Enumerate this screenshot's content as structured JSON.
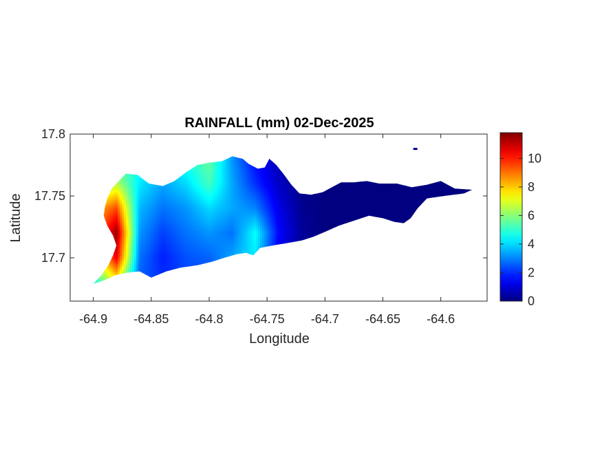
{
  "chart_data": {
    "type": "heatmap",
    "title": "RAINFALL (mm) 02-Dec-2025",
    "xlabel": "Longitude",
    "ylabel": "Latitude",
    "xlim": [
      -64.92,
      -64.56
    ],
    "ylim": [
      17.665,
      17.8
    ],
    "x_ticks": [
      -64.9,
      -64.85,
      -64.8,
      -64.75,
      -64.7,
      -64.65,
      -64.6
    ],
    "x_tick_labels": [
      "-64.9",
      "-64.85",
      "-64.8",
      "-64.75",
      "-64.7",
      "-64.65",
      "-64.6"
    ],
    "y_ticks": [
      17.7,
      17.75,
      17.8
    ],
    "y_tick_labels": [
      "17.7",
      "17.75",
      "17.8"
    ],
    "colorbar": {
      "colormap": "jet",
      "range": [
        0,
        11.8
      ],
      "ticks": [
        0,
        2,
        4,
        6,
        8,
        10
      ],
      "tick_labels": [
        "0",
        "2",
        "4",
        "6",
        "8",
        "10"
      ]
    },
    "region_outline": [
      [
        -64.9,
        17.679
      ],
      [
        -64.893,
        17.686
      ],
      [
        -64.887,
        17.694
      ],
      [
        -64.883,
        17.702
      ],
      [
        -64.88,
        17.71
      ],
      [
        -64.883,
        17.718
      ],
      [
        -64.888,
        17.726
      ],
      [
        -64.891,
        17.734
      ],
      [
        -64.89,
        17.741
      ],
      [
        -64.888,
        17.748
      ],
      [
        -64.884,
        17.756
      ],
      [
        -64.878,
        17.762
      ],
      [
        -64.872,
        17.768
      ],
      [
        -64.862,
        17.767
      ],
      [
        -64.852,
        17.76
      ],
      [
        -64.84,
        17.758
      ],
      [
        -64.83,
        17.762
      ],
      [
        -64.82,
        17.769
      ],
      [
        -64.81,
        17.775
      ],
      [
        -64.799,
        17.777
      ],
      [
        -64.789,
        17.778
      ],
      [
        -64.78,
        17.782
      ],
      [
        -64.771,
        17.78
      ],
      [
        -64.766,
        17.776
      ],
      [
        -64.758,
        17.772
      ],
      [
        -64.752,
        17.773
      ],
      [
        -64.748,
        17.78
      ],
      [
        -64.742,
        17.775
      ],
      [
        -64.736,
        17.768
      ],
      [
        -64.729,
        17.759
      ],
      [
        -64.722,
        17.752
      ],
      [
        -64.712,
        17.751
      ],
      [
        -64.702,
        17.753
      ],
      [
        -64.694,
        17.757
      ],
      [
        -64.686,
        17.761
      ],
      [
        -64.675,
        17.761
      ],
      [
        -64.664,
        17.762
      ],
      [
        -64.653,
        17.76
      ],
      [
        -64.638,
        17.76
      ],
      [
        -64.625,
        17.757
      ],
      [
        -64.612,
        17.759
      ],
      [
        -64.6,
        17.762
      ],
      [
        -64.588,
        17.756
      ],
      [
        -64.573,
        17.755
      ],
      [
        -64.58,
        17.752
      ],
      [
        -64.597,
        17.75
      ],
      [
        -64.612,
        17.748
      ],
      [
        -64.62,
        17.74
      ],
      [
        -64.626,
        17.732
      ],
      [
        -64.632,
        17.728
      ],
      [
        -64.64,
        17.729
      ],
      [
        -64.65,
        17.732
      ],
      [
        -64.662,
        17.734
      ],
      [
        -64.675,
        17.73
      ],
      [
        -64.688,
        17.726
      ],
      [
        -64.7,
        17.721
      ],
      [
        -64.71,
        17.717
      ],
      [
        -64.72,
        17.714
      ],
      [
        -64.732,
        17.712
      ],
      [
        -64.745,
        17.71
      ],
      [
        -64.756,
        17.708
      ],
      [
        -64.762,
        17.702
      ],
      [
        -64.768,
        17.704
      ],
      [
        -64.776,
        17.703
      ],
      [
        -64.787,
        17.7
      ],
      [
        -64.797,
        17.697
      ],
      [
        -64.81,
        17.694
      ],
      [
        -64.825,
        17.692
      ],
      [
        -64.837,
        17.689
      ],
      [
        -64.85,
        17.684
      ],
      [
        -64.86,
        17.689
      ],
      [
        -64.871,
        17.688
      ],
      [
        -64.881,
        17.686
      ],
      [
        -64.89,
        17.682
      ]
    ],
    "extra_points": [
      {
        "lon": -64.622,
        "lat": 17.788,
        "value": 0.3
      }
    ],
    "value_grid": {
      "lon": [
        -64.9,
        -64.88,
        -64.86,
        -64.84,
        -64.82,
        -64.8,
        -64.78,
        -64.76,
        -64.74,
        -64.72,
        -64.7,
        -64.6
      ],
      "lat": [
        17.68,
        17.7,
        17.72,
        17.74,
        17.76,
        17.78
      ],
      "values": [
        [
          4.5,
          7.0,
          2.5,
          2.0,
          2.2,
          2.4,
          3.2,
          2.5,
          1.0,
          0.2,
          0.0,
          0.0
        ],
        [
          6.5,
          10.5,
          2.8,
          1.8,
          2.4,
          2.6,
          3.4,
          4.2,
          1.2,
          0.2,
          0.0,
          0.0
        ],
        [
          8.5,
          11.5,
          3.2,
          2.2,
          2.8,
          3.2,
          2.8,
          4.5,
          1.5,
          0.3,
          0.0,
          0.0
        ],
        [
          8.0,
          9.5,
          3.6,
          2.8,
          3.2,
          4.0,
          3.4,
          3.0,
          1.2,
          0.2,
          0.0,
          0.0
        ],
        [
          5.5,
          6.5,
          4.2,
          3.4,
          4.0,
          5.2,
          3.4,
          2.0,
          0.8,
          0.1,
          0.0,
          0.0
        ],
        [
          4.5,
          5.0,
          4.8,
          4.2,
          4.8,
          5.6,
          3.2,
          1.5,
          0.6,
          0.1,
          0.0,
          0.0
        ]
      ]
    }
  }
}
